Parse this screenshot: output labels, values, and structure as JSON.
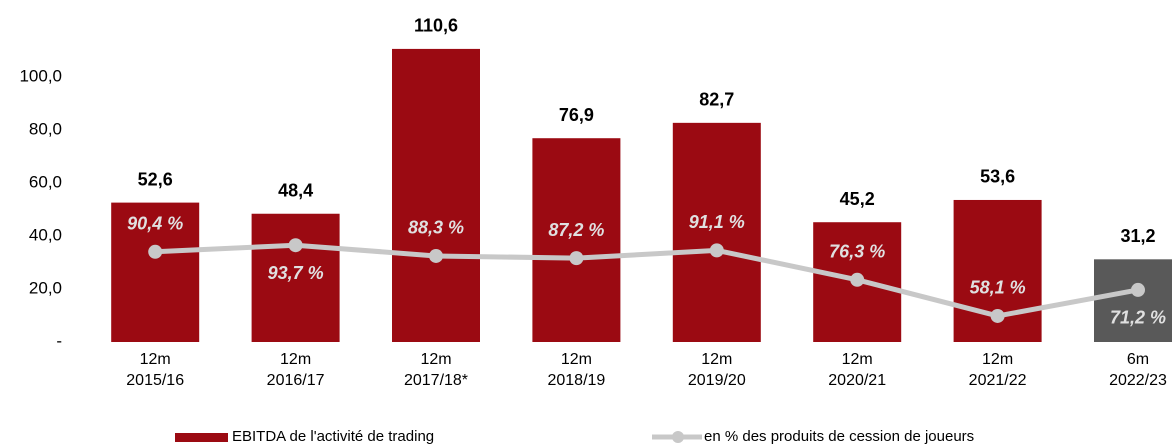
{
  "chart_data": {
    "type": "bar_line",
    "categories": [
      [
        "12m",
        "2015/16"
      ],
      [
        "12m",
        "2016/17"
      ],
      [
        "12m",
        "2017/18*"
      ],
      [
        "12m",
        "2018/19"
      ],
      [
        "12m",
        "2019/20"
      ],
      [
        "12m",
        "2020/21"
      ],
      [
        "12m",
        "2021/22"
      ],
      [
        "6m",
        "2022/23"
      ]
    ],
    "series": [
      {
        "name": "EBITDA de l'activité de trading",
        "type": "bar",
        "color": "#9b0a12",
        "colors": [
          "#9b0a12",
          "#9b0a12",
          "#9b0a12",
          "#9b0a12",
          "#9b0a12",
          "#9b0a12",
          "#9b0a12",
          "#595959"
        ],
        "values": [
          52.6,
          48.4,
          110.6,
          76.9,
          82.7,
          45.2,
          53.6,
          31.2
        ],
        "value_labels": [
          "52,6",
          "48,4",
          "110,6",
          "76,9",
          "82,7",
          "45,2",
          "53,6",
          "31,2"
        ]
      },
      {
        "name": "en % des produits de cession de joueurs",
        "type": "line",
        "axis": "y2",
        "color": "#c8c8c8",
        "values": [
          90.4,
          93.7,
          88.3,
          87.2,
          91.1,
          76.3,
          58.1,
          71.2
        ],
        "value_labels": [
          "90,4 %",
          "93,7 %",
          "88,3 %",
          "87,2 %",
          "91,1 %",
          "76,3 %",
          "58,1 %",
          "71,2 %"
        ]
      }
    ],
    "ylim": [
      0,
      120
    ],
    "yticks": [
      {
        "value": 0,
        "label": "-"
      },
      {
        "value": 20,
        "label": "20,0"
      },
      {
        "value": 40,
        "label": "40,0"
      },
      {
        "value": 60,
        "label": "60,0"
      },
      {
        "value": 80,
        "label": "80,0"
      },
      {
        "value": 100,
        "label": "100,0"
      }
    ],
    "y2lim": [
      45,
      205
    ],
    "grid": false
  }
}
